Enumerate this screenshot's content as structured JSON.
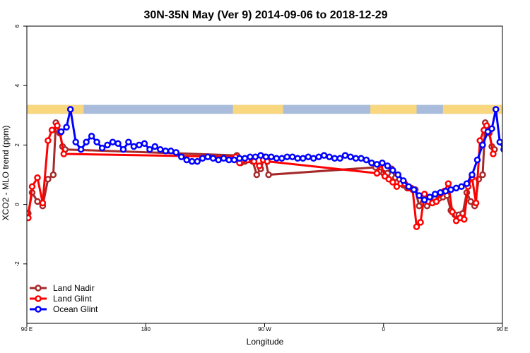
{
  "chart_data": {
    "type": "line",
    "title": "30N-35N May (Ver 9)   2014-09-06 to 2018-12-29",
    "xlabel": "Longitude",
    "ylabel": "XCO2 - MLO trend (ppm)",
    "xlim": [
      0,
      360
    ],
    "ylim": [
      -4,
      6
    ],
    "x_ticks": [
      {
        "value": 0,
        "label": "90 E"
      },
      {
        "value": 90,
        "label": "180"
      },
      {
        "value": 180,
        "label": "90 W"
      },
      {
        "value": 270,
        "label": "0"
      },
      {
        "value": 360,
        "label": "90 E"
      },
      {
        "value": 450,
        "label": "180"
      }
    ],
    "y_ticks": [
      {
        "value": -2,
        "label": "-2"
      },
      {
        "value": 0,
        "label": "0"
      },
      {
        "value": 2,
        "label": "2"
      },
      {
        "value": 4,
        "label": "4"
      },
      {
        "value": 6,
        "label": "6"
      }
    ],
    "land_sea_band": {
      "y_range": [
        3.05,
        3.35
      ],
      "ocean_color": "#a9bcdc",
      "land_color": "#f8d77f",
      "land_x_intervals": [
        [
          0,
          43
        ],
        [
          156,
          194
        ],
        [
          260,
          295
        ],
        [
          315,
          390
        ],
        [
          406,
          450
        ]
      ]
    },
    "legend": {
      "position": "bottom-left"
    },
    "series": [
      {
        "name": "Land Nadir",
        "color": "#a52a2a",
        "points": [
          [
            1,
            -0.3
          ],
          [
            4,
            0.4
          ],
          [
            8,
            0.1
          ],
          [
            12,
            -0.05
          ],
          [
            16,
            0.85
          ],
          [
            20,
            1.0
          ],
          [
            22,
            2.75
          ],
          [
            25,
            2.4
          ],
          [
            27,
            1.95
          ],
          [
            29,
            1.85
          ],
          [
            159,
            1.65
          ],
          [
            162,
            1.4
          ],
          [
            165,
            1.45
          ],
          [
            168,
            1.5
          ],
          [
            171,
            1.45
          ],
          [
            174,
            1.0
          ],
          [
            177,
            1.2
          ],
          [
            180,
            1.6
          ],
          [
            183,
            1.0
          ],
          [
            264,
            1.25
          ],
          [
            267,
            1.1
          ],
          [
            270,
            1.05
          ],
          [
            273,
            1.05
          ],
          [
            276,
            1.2
          ],
          [
            279,
            0.9
          ],
          [
            282,
            0.85
          ],
          [
            285,
            0.65
          ],
          [
            288,
            0.55
          ],
          [
            291,
            0.55
          ],
          [
            294,
            0.5
          ],
          [
            297,
            -0.05
          ],
          [
            300,
            0.25
          ],
          [
            303,
            -0.05
          ],
          [
            306,
            0.15
          ],
          [
            309,
            0.2
          ],
          [
            312,
            0.2
          ],
          [
            315,
            0.25
          ],
          [
            318,
            0.3
          ],
          [
            321,
            -0.2
          ],
          [
            324,
            -0.35
          ],
          [
            327,
            -0.35
          ],
          [
            330,
            -0.3
          ],
          [
            333,
            0.4
          ],
          [
            336,
            0.1
          ],
          [
            339,
            -0.05
          ],
          [
            342,
            0.85
          ],
          [
            345,
            1.0
          ],
          [
            347,
            2.75
          ],
          [
            350,
            2.4
          ],
          [
            352,
            1.95
          ],
          [
            354,
            1.85
          ]
        ]
      },
      {
        "name": "Land Glint",
        "color": "#ff0000",
        "points": [
          [
            1,
            -0.45
          ],
          [
            4,
            0.6
          ],
          [
            8,
            0.9
          ],
          [
            12,
            0.05
          ],
          [
            16,
            2.15
          ],
          [
            19,
            2.5
          ],
          [
            23,
            2.65
          ],
          [
            25,
            2.45
          ],
          [
            28,
            1.7
          ],
          [
            158,
            1.6
          ],
          [
            161,
            1.4
          ],
          [
            164,
            1.5
          ],
          [
            167,
            1.5
          ],
          [
            170,
            1.55
          ],
          [
            172,
            1.45
          ],
          [
            176,
            1.3
          ],
          [
            179,
            1.5
          ],
          [
            182,
            1.45
          ],
          [
            265,
            1.05
          ],
          [
            268,
            1.35
          ],
          [
            271,
            0.95
          ],
          [
            274,
            0.85
          ],
          [
            277,
            0.75
          ],
          [
            280,
            0.6
          ],
          [
            283,
            0.7
          ],
          [
            286,
            0.7
          ],
          [
            289,
            0.55
          ],
          [
            292,
            0.5
          ],
          [
            295,
            -0.75
          ],
          [
            298,
            -0.6
          ],
          [
            301,
            0.35
          ],
          [
            304,
            0.1
          ],
          [
            307,
            0.05
          ],
          [
            310,
            0.1
          ],
          [
            313,
            0.35
          ],
          [
            316,
            0.45
          ],
          [
            319,
            0.7
          ],
          [
            322,
            -0.25
          ],
          [
            325,
            -0.55
          ],
          [
            328,
            -0.45
          ],
          [
            331,
            -0.5
          ],
          [
            334,
            0.6
          ],
          [
            337,
            0.9
          ],
          [
            340,
            0.05
          ],
          [
            343,
            2.15
          ],
          [
            346,
            2.5
          ],
          [
            348,
            2.65
          ],
          [
            350,
            2.45
          ],
          [
            353,
            1.7
          ]
        ]
      },
      {
        "name": "Ocean Glint",
        "color": "#0000ff",
        "points": [
          [
            26,
            2.45
          ],
          [
            30,
            2.6
          ],
          [
            33,
            3.2
          ],
          [
            37,
            2.1
          ],
          [
            41,
            1.85
          ],
          [
            45,
            2.1
          ],
          [
            49,
            2.3
          ],
          [
            53,
            2.1
          ],
          [
            57,
            1.9
          ],
          [
            61,
            2.0
          ],
          [
            65,
            2.1
          ],
          [
            69,
            2.05
          ],
          [
            73,
            1.85
          ],
          [
            77,
            2.1
          ],
          [
            81,
            1.95
          ],
          [
            85,
            2.0
          ],
          [
            89,
            2.05
          ],
          [
            93,
            1.85
          ],
          [
            97,
            1.95
          ],
          [
            101,
            1.85
          ],
          [
            105,
            1.8
          ],
          [
            109,
            1.8
          ],
          [
            113,
            1.75
          ],
          [
            117,
            1.6
          ],
          [
            121,
            1.5
          ],
          [
            125,
            1.45
          ],
          [
            129,
            1.45
          ],
          [
            133,
            1.55
          ],
          [
            137,
            1.6
          ],
          [
            141,
            1.55
          ],
          [
            145,
            1.5
          ],
          [
            149,
            1.55
          ],
          [
            153,
            1.5
          ],
          [
            157,
            1.5
          ],
          [
            161,
            1.55
          ],
          [
            165,
            1.55
          ],
          [
            169,
            1.6
          ],
          [
            173,
            1.6
          ],
          [
            177,
            1.65
          ],
          [
            181,
            1.6
          ],
          [
            185,
            1.6
          ],
          [
            189,
            1.55
          ],
          [
            193,
            1.55
          ],
          [
            197,
            1.6
          ],
          [
            201,
            1.6
          ],
          [
            205,
            1.55
          ],
          [
            209,
            1.55
          ],
          [
            213,
            1.6
          ],
          [
            217,
            1.55
          ],
          [
            221,
            1.6
          ],
          [
            225,
            1.65
          ],
          [
            229,
            1.6
          ],
          [
            233,
            1.55
          ],
          [
            237,
            1.55
          ],
          [
            241,
            1.65
          ],
          [
            245,
            1.6
          ],
          [
            249,
            1.55
          ],
          [
            253,
            1.55
          ],
          [
            257,
            1.5
          ],
          [
            261,
            1.4
          ],
          [
            265,
            1.35
          ],
          [
            269,
            1.4
          ],
          [
            273,
            1.3
          ],
          [
            277,
            1.15
          ],
          [
            281,
            1.0
          ],
          [
            285,
            0.8
          ],
          [
            289,
            0.6
          ],
          [
            293,
            0.5
          ],
          [
            297,
            0.3
          ],
          [
            301,
            0.15
          ],
          [
            305,
            0.25
          ],
          [
            309,
            0.35
          ],
          [
            313,
            0.4
          ],
          [
            317,
            0.45
          ],
          [
            321,
            0.5
          ],
          [
            325,
            0.55
          ],
          [
            329,
            0.6
          ],
          [
            333,
            0.7
          ],
          [
            337,
            1.0
          ],
          [
            341,
            1.5
          ],
          [
            345,
            2.0
          ],
          [
            349,
            2.45
          ],
          [
            352,
            2.55
          ],
          [
            355,
            3.2
          ],
          [
            358,
            2.1
          ],
          [
            361,
            1.85
          ],
          [
            365,
            2.1
          ],
          [
            369,
            2.3
          ],
          [
            373,
            2.1
          ],
          [
            377,
            1.9
          ],
          [
            381,
            2.0
          ]
        ]
      }
    ]
  }
}
